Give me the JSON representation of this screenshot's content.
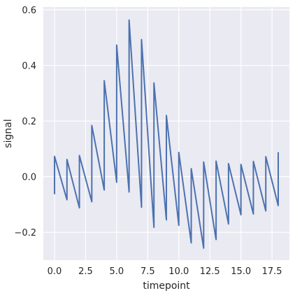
{
  "chart_data": {
    "type": "line",
    "xlabel": "timepoint",
    "ylabel": "signal",
    "xlim": [
      -0.9,
      18.9
    ],
    "ylim": [
      -0.3,
      0.61
    ],
    "xticks": [
      0.0,
      2.5,
      5.0,
      7.5,
      10.0,
      12.5,
      15.0,
      17.5
    ],
    "xtick_labels": [
      "0.0",
      "2.5",
      "5.0",
      "7.5",
      "10.0",
      "12.5",
      "15.0",
      "17.5"
    ],
    "yticks": [
      -0.2,
      0.0,
      0.2,
      0.4,
      0.6
    ],
    "ytick_labels": [
      "−0.2",
      "0.0",
      "0.2",
      "0.4",
      "0.6"
    ],
    "grid": true,
    "background_color": "#eaeaf2",
    "grid_color": "#ffffff",
    "line_color": "#4c72b0",
    "series": [
      {
        "x": [
          0,
          0,
          1,
          1,
          2,
          2,
          3,
          3,
          4,
          4,
          5,
          5,
          6,
          6,
          7,
          7,
          8,
          8,
          9,
          9,
          10,
          10,
          11,
          11,
          12,
          12,
          13,
          13,
          14,
          14,
          15,
          15,
          16,
          16,
          17,
          17,
          18,
          18
        ],
        "y": [
          -0.063,
          0.073,
          -0.083,
          0.062,
          -0.112,
          0.076,
          -0.09,
          0.184,
          -0.048,
          0.345,
          -0.02,
          0.473,
          -0.055,
          0.563,
          -0.11,
          0.493,
          -0.182,
          0.337,
          -0.155,
          0.22,
          -0.175,
          0.087,
          -0.238,
          0.029,
          -0.257,
          0.053,
          -0.226,
          0.056,
          -0.17,
          0.047,
          -0.137,
          0.044,
          -0.134,
          0.055,
          -0.123,
          0.072,
          -0.104,
          0.088
        ]
      }
    ]
  }
}
